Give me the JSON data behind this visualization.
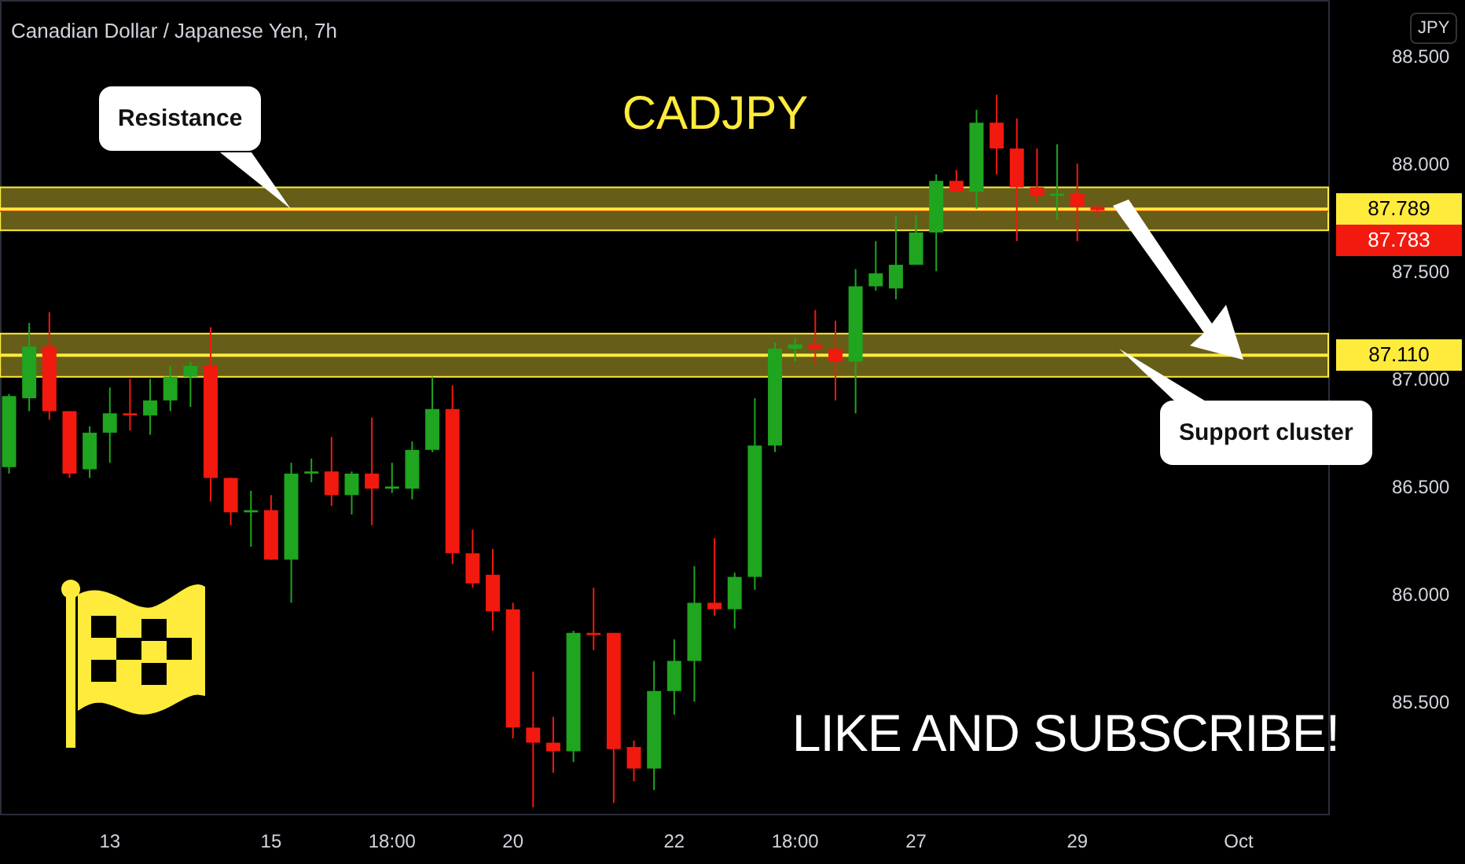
{
  "chart_data": {
    "type": "candlestick",
    "title": "CADJPY",
    "subtitle": "Canadian Dollar / Japanese Yen, 7h",
    "ylabel": "JPY",
    "categories": [
      null,
      null,
      null,
      null,
      null,
      "13",
      null,
      null,
      null,
      null,
      null,
      null,
      null,
      "15",
      null,
      null,
      null,
      null,
      null,
      "18:00",
      null,
      null,
      null,
      null,
      null,
      "20",
      null,
      null,
      null,
      null,
      null,
      null,
      null,
      "22",
      null,
      null,
      null,
      null,
      null,
      "18:00",
      null,
      null,
      null,
      null,
      null,
      "27",
      null,
      null,
      null,
      null,
      null,
      null,
      null,
      "29",
      null,
      null,
      null,
      null,
      null,
      null,
      null,
      "Oct",
      null,
      null,
      null,
      null
    ],
    "ohlc": [
      [
        86.59,
        86.93,
        86.56,
        86.92
      ],
      [
        86.91,
        87.26,
        86.85,
        87.15
      ],
      [
        87.15,
        87.31,
        86.81,
        86.85
      ],
      [
        86.85,
        86.85,
        86.54,
        86.56
      ],
      [
        86.58,
        86.78,
        86.54,
        86.75
      ],
      [
        86.75,
        86.96,
        86.61,
        86.84
      ],
      [
        86.84,
        87.0,
        86.76,
        86.83
      ],
      [
        86.83,
        87.0,
        86.74,
        86.9
      ],
      [
        86.9,
        87.06,
        86.85,
        87.01
      ],
      [
        87.01,
        87.08,
        86.87,
        87.06
      ],
      [
        87.06,
        87.24,
        86.43,
        86.54
      ],
      [
        86.54,
        86.54,
        86.32,
        86.38
      ],
      [
        86.38,
        86.48,
        86.22,
        86.39
      ],
      [
        86.39,
        86.46,
        86.16,
        86.16
      ],
      [
        86.16,
        86.61,
        85.96,
        86.56
      ],
      [
        86.56,
        86.63,
        86.52,
        86.57
      ],
      [
        86.57,
        86.73,
        86.41,
        86.46
      ],
      [
        86.46,
        86.57,
        86.37,
        86.56
      ],
      [
        86.56,
        86.82,
        86.32,
        86.49
      ],
      [
        86.49,
        86.61,
        86.47,
        86.5
      ],
      [
        86.49,
        86.71,
        86.44,
        86.67
      ],
      [
        86.67,
        87.01,
        86.66,
        86.86
      ],
      [
        86.86,
        86.97,
        86.14,
        86.19
      ],
      [
        86.19,
        86.3,
        86.03,
        86.05
      ],
      [
        86.09,
        86.21,
        85.83,
        85.92
      ],
      [
        85.93,
        85.96,
        85.33,
        85.38
      ],
      [
        85.38,
        85.64,
        85.01,
        85.31
      ],
      [
        85.31,
        85.43,
        85.17,
        85.27
      ],
      [
        85.27,
        85.83,
        85.22,
        85.82
      ],
      [
        85.82,
        86.03,
        85.74,
        85.81
      ],
      [
        85.82,
        85.82,
        85.03,
        85.28
      ],
      [
        85.29,
        85.32,
        85.13,
        85.19
      ],
      [
        85.19,
        85.69,
        85.09,
        85.55
      ],
      [
        85.55,
        85.79,
        85.44,
        85.69
      ],
      [
        85.69,
        86.13,
        85.5,
        85.96
      ],
      [
        85.96,
        86.26,
        85.9,
        85.93
      ],
      [
        85.93,
        86.1,
        85.84,
        86.08
      ],
      [
        86.08,
        86.91,
        86.02,
        86.69
      ],
      [
        86.69,
        87.17,
        86.66,
        87.14
      ],
      [
        87.14,
        87.19,
        87.08,
        87.16
      ],
      [
        87.16,
        87.32,
        87.07,
        87.14
      ],
      [
        87.14,
        87.27,
        86.9,
        87.08
      ],
      [
        87.08,
        87.51,
        86.84,
        87.43
      ],
      [
        87.43,
        87.64,
        87.41,
        87.49
      ],
      [
        87.42,
        87.76,
        87.37,
        87.53
      ],
      [
        87.53,
        87.76,
        87.53,
        87.68
      ],
      [
        87.68,
        87.95,
        87.5,
        87.92
      ],
      [
        87.92,
        87.97,
        87.87,
        87.87
      ],
      [
        87.87,
        88.25,
        87.79,
        88.19
      ],
      [
        88.19,
        88.32,
        87.95,
        88.07
      ],
      [
        88.07,
        88.21,
        87.64,
        87.89
      ],
      [
        87.89,
        88.07,
        87.82,
        87.85
      ],
      [
        87.85,
        88.09,
        87.74,
        87.86
      ],
      [
        87.86,
        88.0,
        87.64,
        87.8
      ],
      [
        87.8,
        87.81,
        87.75,
        87.783
      ],
      null,
      null,
      null,
      null,
      null,
      null,
      null,
      null,
      null,
      null,
      null
    ],
    "colors": [
      "#1fa51f",
      "#1fa51f",
      "#f2190f",
      "#f2190f",
      "#1fa51f",
      "#1fa51f",
      "#f2190f",
      "#1fa51f",
      "#1fa51f",
      "#1fa51f",
      "#f2190f",
      "#f2190f",
      "#1fa51f",
      "#f2190f",
      "#1fa51f",
      "#1fa51f",
      "#f2190f",
      "#1fa51f",
      "#f2190f",
      "#1fa51f",
      "#1fa51f",
      "#1fa51f",
      "#f2190f",
      "#f2190f",
      "#f2190f",
      "#f2190f",
      "#f2190f",
      "#f2190f",
      "#1fa51f",
      "#f2190f",
      "#f2190f",
      "#f2190f",
      "#1fa51f",
      "#1fa51f",
      "#1fa51f",
      "#f2190f",
      "#1fa51f",
      "#1fa51f",
      "#1fa51f",
      "#1fa51f",
      "#f2190f",
      "#f2190f",
      "#1fa51f",
      "#1fa51f",
      "#1fa51f",
      "#1fa51f",
      "#1fa51f",
      "#f2190f",
      "#1fa51f",
      "#f2190f",
      "#f2190f",
      "#f2190f",
      "#1fa51f",
      "#f2190f",
      "#f2190f",
      null,
      null,
      null,
      null,
      null,
      null,
      null,
      null,
      null,
      null,
      null
    ],
    "ylim": [
      84.98,
      88.76
    ],
    "yticks": [
      {
        "value": 85.5,
        "label": "85.500"
      },
      {
        "value": 86.0,
        "label": "86.000"
      },
      {
        "value": 86.5,
        "label": "86.500"
      },
      {
        "value": 87.0,
        "label": "87.000"
      },
      {
        "value": 87.5,
        "label": "87.500"
      },
      {
        "value": 88.0,
        "label": "88.000"
      },
      {
        "value": 88.5,
        "label": "88.500"
      }
    ],
    "bands": [
      {
        "axis": "y",
        "from": 87.69,
        "to": 87.89,
        "color": "#ffeb3b"
      },
      {
        "axis": "y",
        "from": 87.01,
        "to": 87.21,
        "color": "#ffeb3b"
      }
    ],
    "ref_lines": [
      {
        "axis": "y",
        "value": 87.783,
        "label": "87.783",
        "color": "#f2190f"
      },
      {
        "axis": "y",
        "value": 87.789,
        "label": "87.789",
        "color": "#ffeb3b"
      },
      {
        "axis": "y",
        "value": 87.11,
        "label": "87.110",
        "color": "#ffeb3b"
      }
    ],
    "annotations": [
      "Resistance",
      "Support cluster",
      "LIKE AND SUBSCRIBE!"
    ]
  }
}
